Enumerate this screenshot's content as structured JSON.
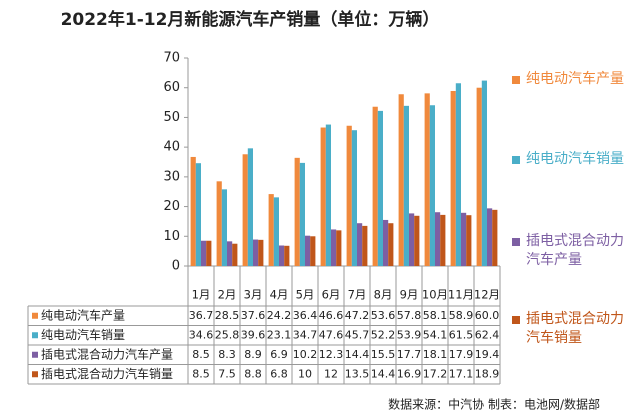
{
  "chart_data": {
    "type": "bar",
    "title": "2022年1-12月新能源汽车产销量（单位：万辆）",
    "source": "数据来源：中汽协 制表：电池网/数据部",
    "categories": [
      "1月",
      "2月",
      "3月",
      "4月",
      "5月",
      "6月",
      "7月",
      "8月",
      "9月",
      "10月",
      "11月",
      "12月"
    ],
    "series": [
      {
        "name": "纯电动汽车产量",
        "color": "#f0893c",
        "values": [
          36.7,
          28.5,
          37.6,
          24.2,
          36.4,
          46.6,
          47.2,
          53.6,
          57.8,
          58.1,
          58.9,
          60
        ],
        "value_labels": [
          "36.7",
          "28.5",
          "37.6",
          "24.2",
          "36.4",
          "46.6",
          "47.2",
          "53.6",
          "57.8",
          "58.1",
          "58.9",
          "60.0"
        ]
      },
      {
        "name": "纯电动汽车销量",
        "color": "#4aaec8",
        "values": [
          34.6,
          25.8,
          39.6,
          23.1,
          34.7,
          47.6,
          45.7,
          52.2,
          53.9,
          54.1,
          61.5,
          62.4
        ]
      },
      {
        "name": "插电式混合动力汽车产量",
        "color": "#7d5fa3",
        "values": [
          8.5,
          8.3,
          8.9,
          6.9,
          10.2,
          12.3,
          14.4,
          15.5,
          17.7,
          18.1,
          17.9,
          19.4
        ]
      },
      {
        "name": "插电式混合动力汽车销量",
        "color": "#c0561a",
        "values": [
          8.5,
          7.5,
          8.8,
          6.8,
          10,
          12,
          13.5,
          14.4,
          16.9,
          17.2,
          17.1,
          18.9
        ]
      }
    ],
    "ylim": [
      0,
      70
    ],
    "yticks": [
      0,
      10,
      20,
      30,
      40,
      50,
      60,
      70
    ],
    "grid": false
  }
}
